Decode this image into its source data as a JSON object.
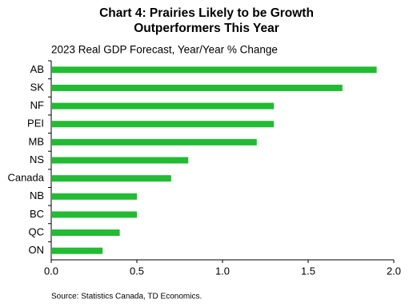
{
  "chart_data": {
    "type": "hbar",
    "title": [
      "Chart 4: Prairies Likely to be Growth",
      "Outperformers This Year"
    ],
    "subtitle": "2023 Real GDP Forecast, Year/Year % Change",
    "source": "Source:  Statistics Canada,  TD Economics.",
    "categories": [
      "AB",
      "SK",
      "NF",
      "PEI",
      "MB",
      "NS",
      "Canada",
      "NB",
      "BC",
      "QC",
      "ON"
    ],
    "values": [
      1.9,
      1.7,
      1.3,
      1.3,
      1.2,
      0.8,
      0.7,
      0.5,
      0.5,
      0.4,
      0.3
    ],
    "color": "#22bb33",
    "xlim": [
      0,
      2
    ],
    "xticks": [
      {
        "value": 0,
        "label": "0.0"
      },
      0.5,
      {
        "value": 1,
        "label": "1.0"
      },
      1.5,
      {
        "value": 2,
        "label": "2.0"
      }
    ],
    "grid": false
  }
}
